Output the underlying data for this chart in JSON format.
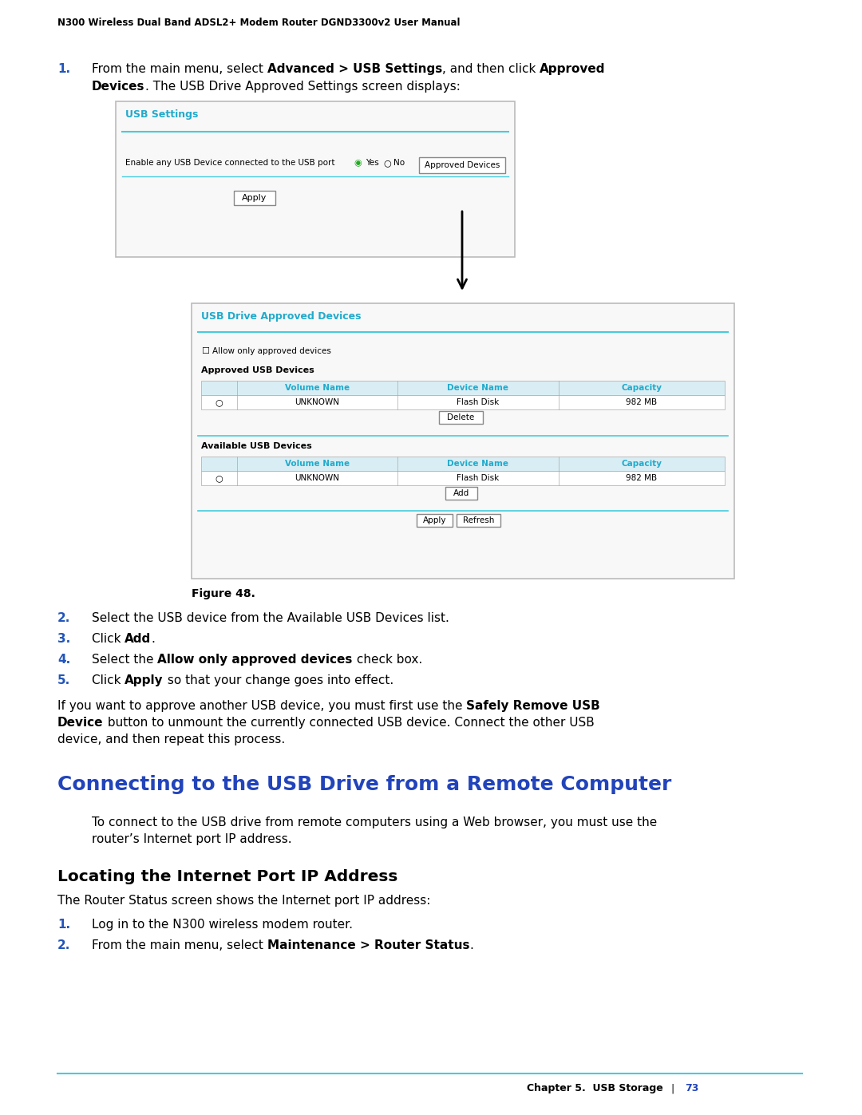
{
  "header_text": "N300 Wireless Dual Band ADSL2+ Modem Router DGND3300v2 User Manual",
  "footer_chapter": "Chapter 5.  USB Storage",
  "footer_page": "73",
  "bg_color": "#ffffff",
  "usb_settings_title": "USB Settings",
  "usb_settings_label": "Enable any USB Device connected to the USB port",
  "usb_settings_radio": "◉Yes ○No",
  "usb_settings_btn": "Approved Devices",
  "usb_settings_apply": "Apply",
  "usb_approved_title": "USB Drive Approved Devices",
  "allow_only_text": "Allow only approved devices",
  "approved_usb_label": "Approved USB Devices",
  "col_headers": [
    "Volume Name",
    "Device Name",
    "Capacity"
  ],
  "approved_row": [
    "UNKNOWN",
    "Flash Disk",
    "982 MB"
  ],
  "delete_btn": "Delete",
  "available_usb_label": "Available USB Devices",
  "available_row": [
    "UNKNOWN",
    "Flash Disk",
    "982 MB"
  ],
  "add_btn": "Add",
  "apply_btn": "Apply",
  "refresh_btn": "Refresh",
  "figure_label": "Figure 48.",
  "step2": "Select the USB device from the Available USB Devices list.",
  "sub_step1": "Log in to the N300 wireless modem router.",
  "section_title": "Connecting to the USB Drive from a Remote Computer",
  "section_para1": "To connect to the USB drive from remote computers using a Web browser, you must use the",
  "section_para2": "router’s Internet port IP address.",
  "subsection_title": "Locating the Internet Port IP Address",
  "subsection_para": "The Router Status screen shows the Internet port IP address:",
  "para1_line3": "device, and then repeat this process."
}
